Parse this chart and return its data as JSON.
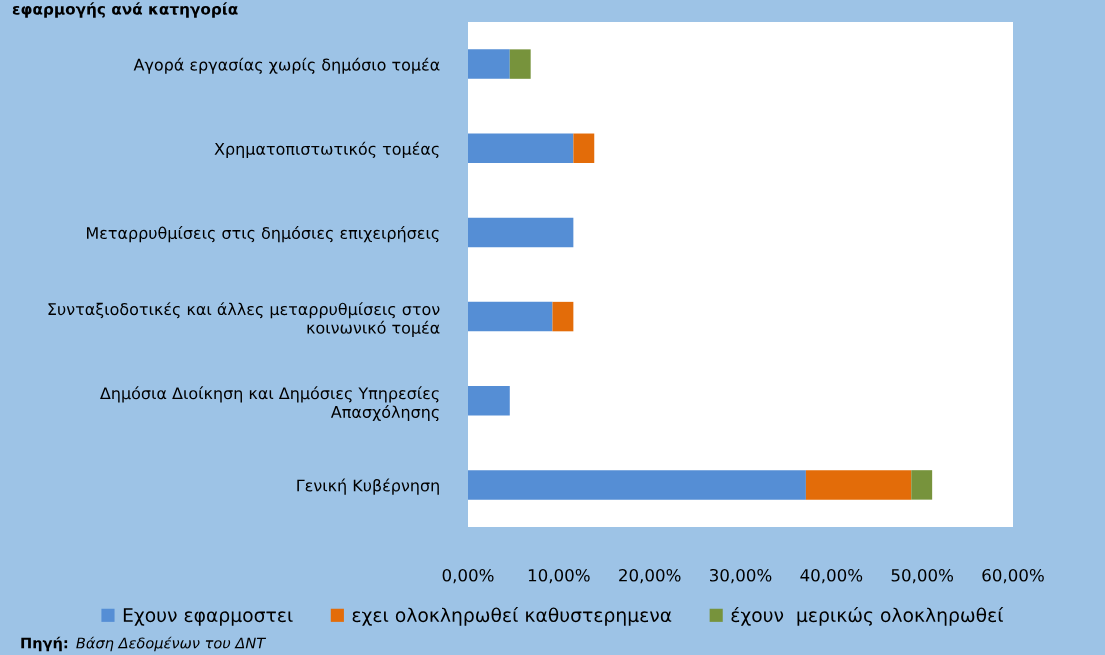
{
  "chart_data": {
    "type": "bar",
    "orientation": "horizontal",
    "stacked": true,
    "title": "εφαρμογής ανά κατηγορία",
    "categories": [
      "Αγορά εργασίας χωρίς δημόσιο τομέα",
      "Χρηματοπιστωτικός τομέας",
      "Μεταρρυθμίσεις στις δημόσιες επιχειρήσεις",
      "Συνταξιοδοτικές και άλλες μεταρρυθμίσεις στον\nκοινωνικό τομέα",
      "Δημόσια Διοίκηση και Δημόσιες Υπηρεσίες\nΑπασχόλησης",
      "Γενική Κυβέρνηση"
    ],
    "series": [
      {
        "name": "Εχουν εφαρμοστει",
        "color": "#558ed5",
        "values": [
          4.6,
          11.6,
          11.6,
          9.3,
          4.6,
          37.2
        ]
      },
      {
        "name": "εχει ολοκληρωθεί καθυστερημενα",
        "color": "#e36c09",
        "values": [
          null,
          2.3,
          null,
          2.3,
          null,
          11.6
        ]
      },
      {
        "name": "έχουν  μερικώς ολοκληρωθεί",
        "color": "#77933c",
        "values": [
          2.3,
          null,
          null,
          null,
          null,
          2.3
        ]
      }
    ],
    "xlim": [
      0,
      60
    ],
    "xticks": [
      {
        "value": 0,
        "label": "0,00%"
      },
      {
        "value": 10,
        "label": "10,00%"
      },
      {
        "value": 20,
        "label": "20,00%"
      },
      {
        "value": 30,
        "label": "30,00%"
      },
      {
        "value": 40,
        "label": "40,00%"
      },
      {
        "value": 50,
        "label": "50,00%"
      },
      {
        "value": 60,
        "label": "60,00%"
      }
    ],
    "grid": false,
    "legend": "bottom",
    "annotations": [
      "Πηγή:  Βάση Δεδομένων του ΔΝΤ"
    ]
  }
}
